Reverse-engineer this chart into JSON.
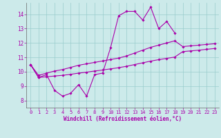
{
  "x_values": [
    0,
    1,
    2,
    3,
    4,
    5,
    6,
    7,
    8,
    9,
    10,
    11,
    12,
    13,
    14,
    15,
    16,
    17,
    18,
    19,
    20,
    21,
    22,
    23
  ],
  "line_jagged": [
    10.5,
    9.6,
    9.8,
    8.7,
    8.3,
    8.5,
    9.1,
    8.3,
    9.8,
    9.9,
    11.7,
    13.9,
    14.2,
    14.2,
    13.6,
    14.5,
    13.0,
    13.5,
    12.7,
    null,
    null,
    null,
    null,
    null
  ],
  "line_upper": [
    10.5,
    9.75,
    9.9,
    10.05,
    10.15,
    10.3,
    10.45,
    10.55,
    10.65,
    10.75,
    10.85,
    10.95,
    11.1,
    11.3,
    11.5,
    11.7,
    11.85,
    12.0,
    12.15,
    11.75,
    11.8,
    11.85,
    11.9,
    11.95
  ],
  "line_lower": [
    10.5,
    9.6,
    9.65,
    9.7,
    9.75,
    9.82,
    9.9,
    9.97,
    10.05,
    10.12,
    10.2,
    10.28,
    10.38,
    10.5,
    10.62,
    10.74,
    10.84,
    10.93,
    11.02,
    11.4,
    11.45,
    11.5,
    11.56,
    11.62
  ],
  "line_color": "#aa00aa",
  "bg_color": "#cceaea",
  "grid_color": "#99cccc",
  "xlim": [
    -0.5,
    23.5
  ],
  "ylim": [
    7.5,
    14.8
  ],
  "yticks": [
    8,
    9,
    10,
    11,
    12,
    13,
    14
  ],
  "xticks": [
    0,
    1,
    2,
    3,
    4,
    5,
    6,
    7,
    8,
    9,
    10,
    11,
    12,
    13,
    14,
    15,
    16,
    17,
    18,
    19,
    20,
    21,
    22,
    23
  ],
  "xlabel": "Windchill (Refroidissement éolien,°C)",
  "marker": "D",
  "marker_size": 1.8,
  "line_width": 0.8,
  "tick_fontsize": 5.0,
  "xlabel_fontsize": 5.5
}
